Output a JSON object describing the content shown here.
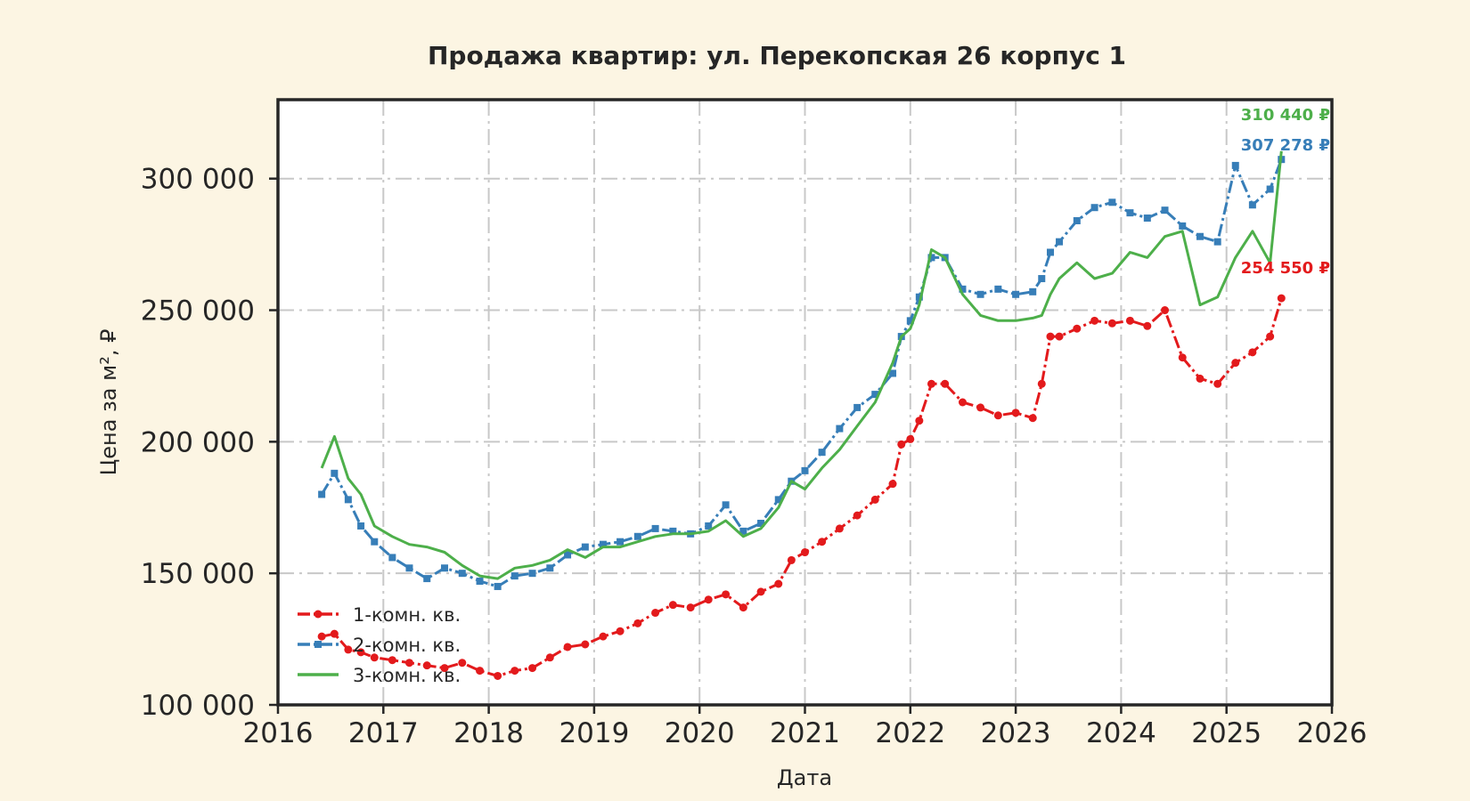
{
  "chart_data": {
    "type": "line",
    "title": "Продажа квартир: ул. Перекопская 26 корпус 1",
    "xlabel": "Дата",
    "ylabel": "Цена за м², ₽",
    "xlim": [
      "2016-01-01",
      "2026-01-01"
    ],
    "ylim": [
      100000,
      330000
    ],
    "x_ticks": [
      2016,
      2017,
      2018,
      2019,
      2020,
      2021,
      2022,
      2023,
      2024,
      2025,
      2026
    ],
    "x_tick_labels": [
      "2016",
      "2017",
      "2018",
      "2019",
      "2020",
      "2021",
      "2022",
      "2023",
      "2024",
      "2025",
      "2026"
    ],
    "y_ticks": [
      100000,
      150000,
      200000,
      250000,
      300000
    ],
    "y_tick_labels": [
      "100 000",
      "150 000",
      "200 000",
      "250 000",
      "300 000"
    ],
    "grid": true,
    "legend_position": "lower-left",
    "series": [
      {
        "name": "1-комн. кв.",
        "color": "#e31a1c",
        "marker": "circle",
        "end_label": "254 550 ₽",
        "x": [
          "2016-06-01",
          "2016-07-15",
          "2016-09-01",
          "2016-10-15",
          "2016-12-01",
          "2017-02-01",
          "2017-04-01",
          "2017-06-01",
          "2017-08-01",
          "2017-10-01",
          "2017-12-01",
          "2018-02-01",
          "2018-04-01",
          "2018-06-01",
          "2018-08-01",
          "2018-10-01",
          "2018-12-01",
          "2019-02-01",
          "2019-04-01",
          "2019-06-01",
          "2019-08-01",
          "2019-10-01",
          "2019-12-01",
          "2020-02-01",
          "2020-04-01",
          "2020-06-01",
          "2020-08-01",
          "2020-10-01",
          "2020-11-15",
          "2021-01-01",
          "2021-03-01",
          "2021-05-01",
          "2021-07-01",
          "2021-09-01",
          "2021-11-01",
          "2021-12-01",
          "2022-01-01",
          "2022-02-01",
          "2022-03-15",
          "2022-05-01",
          "2022-07-01",
          "2022-09-01",
          "2022-11-01",
          "2023-01-01",
          "2023-03-01",
          "2023-04-01",
          "2023-05-01",
          "2023-06-01",
          "2023-08-01",
          "2023-10-01",
          "2023-12-01",
          "2024-02-01",
          "2024-04-01",
          "2024-06-01",
          "2024-08-01",
          "2024-10-01",
          "2024-12-01",
          "2025-02-01",
          "2025-04-01",
          "2025-06-01",
          "2025-07-10"
        ],
        "y": [
          126000,
          127000,
          121000,
          120000,
          118000,
          117000,
          116000,
          115000,
          114000,
          116000,
          113000,
          111000,
          113000,
          114000,
          118000,
          122000,
          123000,
          126000,
          128000,
          131000,
          135000,
          138000,
          137000,
          140000,
          142000,
          137000,
          143000,
          146000,
          155000,
          158000,
          162000,
          167000,
          172000,
          178000,
          184000,
          199000,
          201000,
          208000,
          222000,
          222000,
          215000,
          213000,
          210000,
          211000,
          209000,
          222000,
          240000,
          240000,
          243000,
          246000,
          245000,
          246000,
          244000,
          250000,
          232000,
          224000,
          222000,
          230000,
          234000,
          240000,
          254550
        ]
      },
      {
        "name": "2-комн. кв.",
        "color": "#377eb8",
        "marker": "square",
        "end_label": "307 278 ₽",
        "x": [
          "2016-06-01",
          "2016-07-15",
          "2016-09-01",
          "2016-10-15",
          "2016-12-01",
          "2017-02-01",
          "2017-04-01",
          "2017-06-01",
          "2017-08-01",
          "2017-10-01",
          "2017-12-01",
          "2018-02-01",
          "2018-04-01",
          "2018-06-01",
          "2018-08-01",
          "2018-10-01",
          "2018-12-01",
          "2019-02-01",
          "2019-04-01",
          "2019-06-01",
          "2019-08-01",
          "2019-10-01",
          "2019-12-01",
          "2020-02-01",
          "2020-04-01",
          "2020-06-01",
          "2020-08-01",
          "2020-10-01",
          "2020-11-15",
          "2021-01-01",
          "2021-03-01",
          "2021-05-01",
          "2021-07-01",
          "2021-09-01",
          "2021-11-01",
          "2021-12-01",
          "2022-01-01",
          "2022-02-01",
          "2022-03-15",
          "2022-05-01",
          "2022-07-01",
          "2022-09-01",
          "2022-11-01",
          "2023-01-01",
          "2023-03-01",
          "2023-04-01",
          "2023-05-01",
          "2023-06-01",
          "2023-08-01",
          "2023-10-01",
          "2023-12-01",
          "2024-02-01",
          "2024-04-01",
          "2024-06-01",
          "2024-08-01",
          "2024-10-01",
          "2024-12-01",
          "2025-02-01",
          "2025-04-01",
          "2025-06-01",
          "2025-07-10"
        ],
        "y": [
          180000,
          188000,
          178000,
          168000,
          162000,
          156000,
          152000,
          148000,
          152000,
          150000,
          147000,
          145000,
          149000,
          150000,
          152000,
          157000,
          160000,
          161000,
          162000,
          164000,
          167000,
          166000,
          165000,
          168000,
          176000,
          166000,
          169000,
          178000,
          185000,
          189000,
          196000,
          205000,
          213000,
          218000,
          226000,
          240000,
          246000,
          255000,
          270000,
          270000,
          258000,
          256000,
          258000,
          256000,
          257000,
          262000,
          272000,
          276000,
          284000,
          289000,
          291000,
          287000,
          285000,
          288000,
          282000,
          278000,
          276000,
          305000,
          290000,
          296000,
          307278
        ]
      },
      {
        "name": "3-комн. кв.",
        "color": "#4daf4a",
        "marker": "none",
        "end_label": "310 440 ₽",
        "x": [
          "2016-06-01",
          "2016-07-15",
          "2016-09-01",
          "2016-10-15",
          "2016-12-01",
          "2017-02-01",
          "2017-04-01",
          "2017-06-01",
          "2017-08-01",
          "2017-10-01",
          "2017-12-01",
          "2018-02-01",
          "2018-04-01",
          "2018-06-01",
          "2018-08-01",
          "2018-10-01",
          "2018-12-01",
          "2019-02-01",
          "2019-04-01",
          "2019-06-01",
          "2019-08-01",
          "2019-10-01",
          "2019-12-01",
          "2020-02-01",
          "2020-04-01",
          "2020-06-01",
          "2020-08-01",
          "2020-10-01",
          "2020-11-15",
          "2021-01-01",
          "2021-03-01",
          "2021-05-01",
          "2021-07-01",
          "2021-09-01",
          "2021-11-01",
          "2021-12-01",
          "2022-01-01",
          "2022-02-01",
          "2022-03-15",
          "2022-05-01",
          "2022-07-01",
          "2022-09-01",
          "2022-11-01",
          "2023-01-01",
          "2023-03-01",
          "2023-04-01",
          "2023-05-01",
          "2023-06-01",
          "2023-08-01",
          "2023-10-01",
          "2023-12-01",
          "2024-02-01",
          "2024-04-01",
          "2024-06-01",
          "2024-08-01",
          "2024-10-01",
          "2024-12-01",
          "2025-02-01",
          "2025-04-01",
          "2025-06-01",
          "2025-07-10"
        ],
        "y": [
          190000,
          202000,
          186000,
          180000,
          168000,
          164000,
          161000,
          160000,
          158000,
          153000,
          149000,
          148000,
          152000,
          153000,
          155000,
          159000,
          156000,
          160000,
          160000,
          162000,
          164000,
          165000,
          165000,
          166000,
          170000,
          164000,
          167000,
          175000,
          185000,
          182000,
          190000,
          197000,
          206000,
          215000,
          230000,
          240000,
          243000,
          252000,
          273000,
          270000,
          256000,
          248000,
          246000,
          246000,
          247000,
          248000,
          256000,
          262000,
          268000,
          262000,
          264000,
          272000,
          270000,
          278000,
          280000,
          252000,
          255000,
          270000,
          280000,
          268000,
          310440
        ]
      }
    ]
  }
}
